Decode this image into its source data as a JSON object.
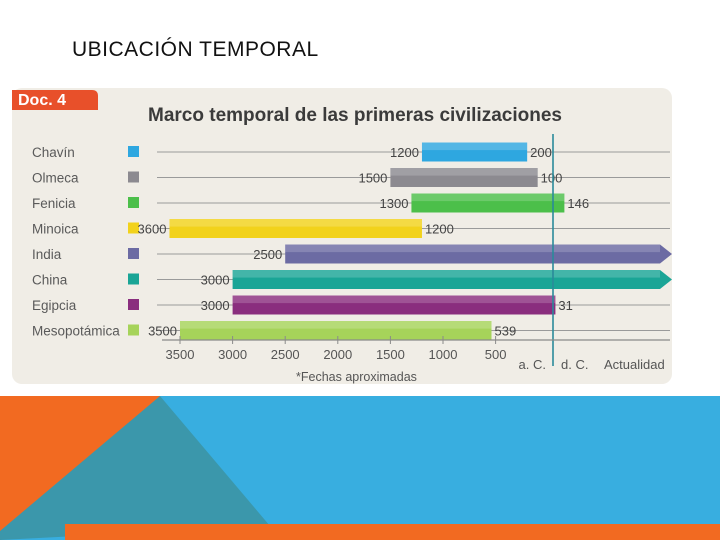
{
  "slide": {
    "title": "UBICACIÓN TEMPORAL"
  },
  "colors": {
    "doc_badge": "#e8502a",
    "panel_bg": "#f0ede6",
    "title_text": "#3b3b3b",
    "axis": "#8a8a8a",
    "divider": "#2a8a9a",
    "footer_orange": "#f26a21",
    "footer_teal": "#3b97ab",
    "footer_blue": "#38aee0"
  },
  "chart_data": {
    "type": "bar",
    "orientation": "horizontal-range",
    "badge": "Doc. 4",
    "title": "Marco temporal de las primeras civilizaciones",
    "footnote": "*Fechas aproximadas",
    "x_axis": {
      "ticks": [
        "3500",
        "3000",
        "2500",
        "2000",
        "1500",
        "1000",
        "500"
      ],
      "era_labels": [
        "a. C.",
        "d. C.",
        "Actualidad"
      ]
    },
    "series": [
      {
        "name": "Chavín",
        "start": -1200,
        "end": -200,
        "start_label": "1200",
        "end_label": "200",
        "color": "#2ea7e0",
        "ongoing": false
      },
      {
        "name": "Olmeca",
        "start": -1500,
        "end": -100,
        "start_label": "1500",
        "end_label": "100",
        "color": "#8c8a90",
        "ongoing": false
      },
      {
        "name": "Fenicia",
        "start": -1300,
        "end": 146,
        "start_label": "1300",
        "end_label": "146",
        "color": "#4cbf4a",
        "ongoing": false
      },
      {
        "name": "Minoica",
        "start": -3600,
        "end": -1200,
        "start_label": "3600",
        "end_label": "1200",
        "color": "#f2d21b",
        "ongoing": false
      },
      {
        "name": "India",
        "start": -2500,
        "end": null,
        "start_label": "2500",
        "end_label": "",
        "color": "#6c6ba3",
        "ongoing": true
      },
      {
        "name": "China",
        "start": -3000,
        "end": null,
        "start_label": "3000",
        "end_label": "",
        "color": "#1aa596",
        "ongoing": true
      },
      {
        "name": "Egipcia",
        "start": -3000,
        "end": 31,
        "start_label": "3000",
        "end_label": "31",
        "color": "#8a2e7e",
        "ongoing": false
      },
      {
        "name": "Mesopotámica",
        "start": -3500,
        "end": -539,
        "start_label": "3500",
        "end_label": "539",
        "color": "#a6d35a",
        "ongoing": false
      }
    ]
  }
}
